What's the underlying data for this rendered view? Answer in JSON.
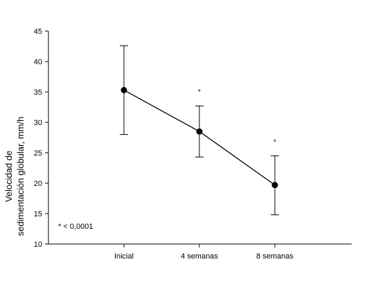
{
  "chart_data": {
    "type": "line",
    "title": "",
    "xlabel": "",
    "ylabel_lines": [
      "Velocidad de",
      "sedimentación globular, mm/h"
    ],
    "categories": [
      "Inicial",
      "4 semanas",
      "8 semanas"
    ],
    "series": [
      {
        "values": [
          35.3,
          28.5,
          19.7
        ],
        "error_upper": [
          42.6,
          32.7,
          24.5
        ],
        "error_lower": [
          28.0,
          24.3,
          14.8
        ]
      }
    ],
    "significance_marks": [
      "",
      "*",
      "*"
    ],
    "annotation": "* < 0,0001",
    "ylim": [
      10,
      45
    ],
    "yticks": [
      10,
      15,
      20,
      25,
      30,
      35,
      40,
      45
    ],
    "grid": false,
    "line_color": "#000000"
  }
}
